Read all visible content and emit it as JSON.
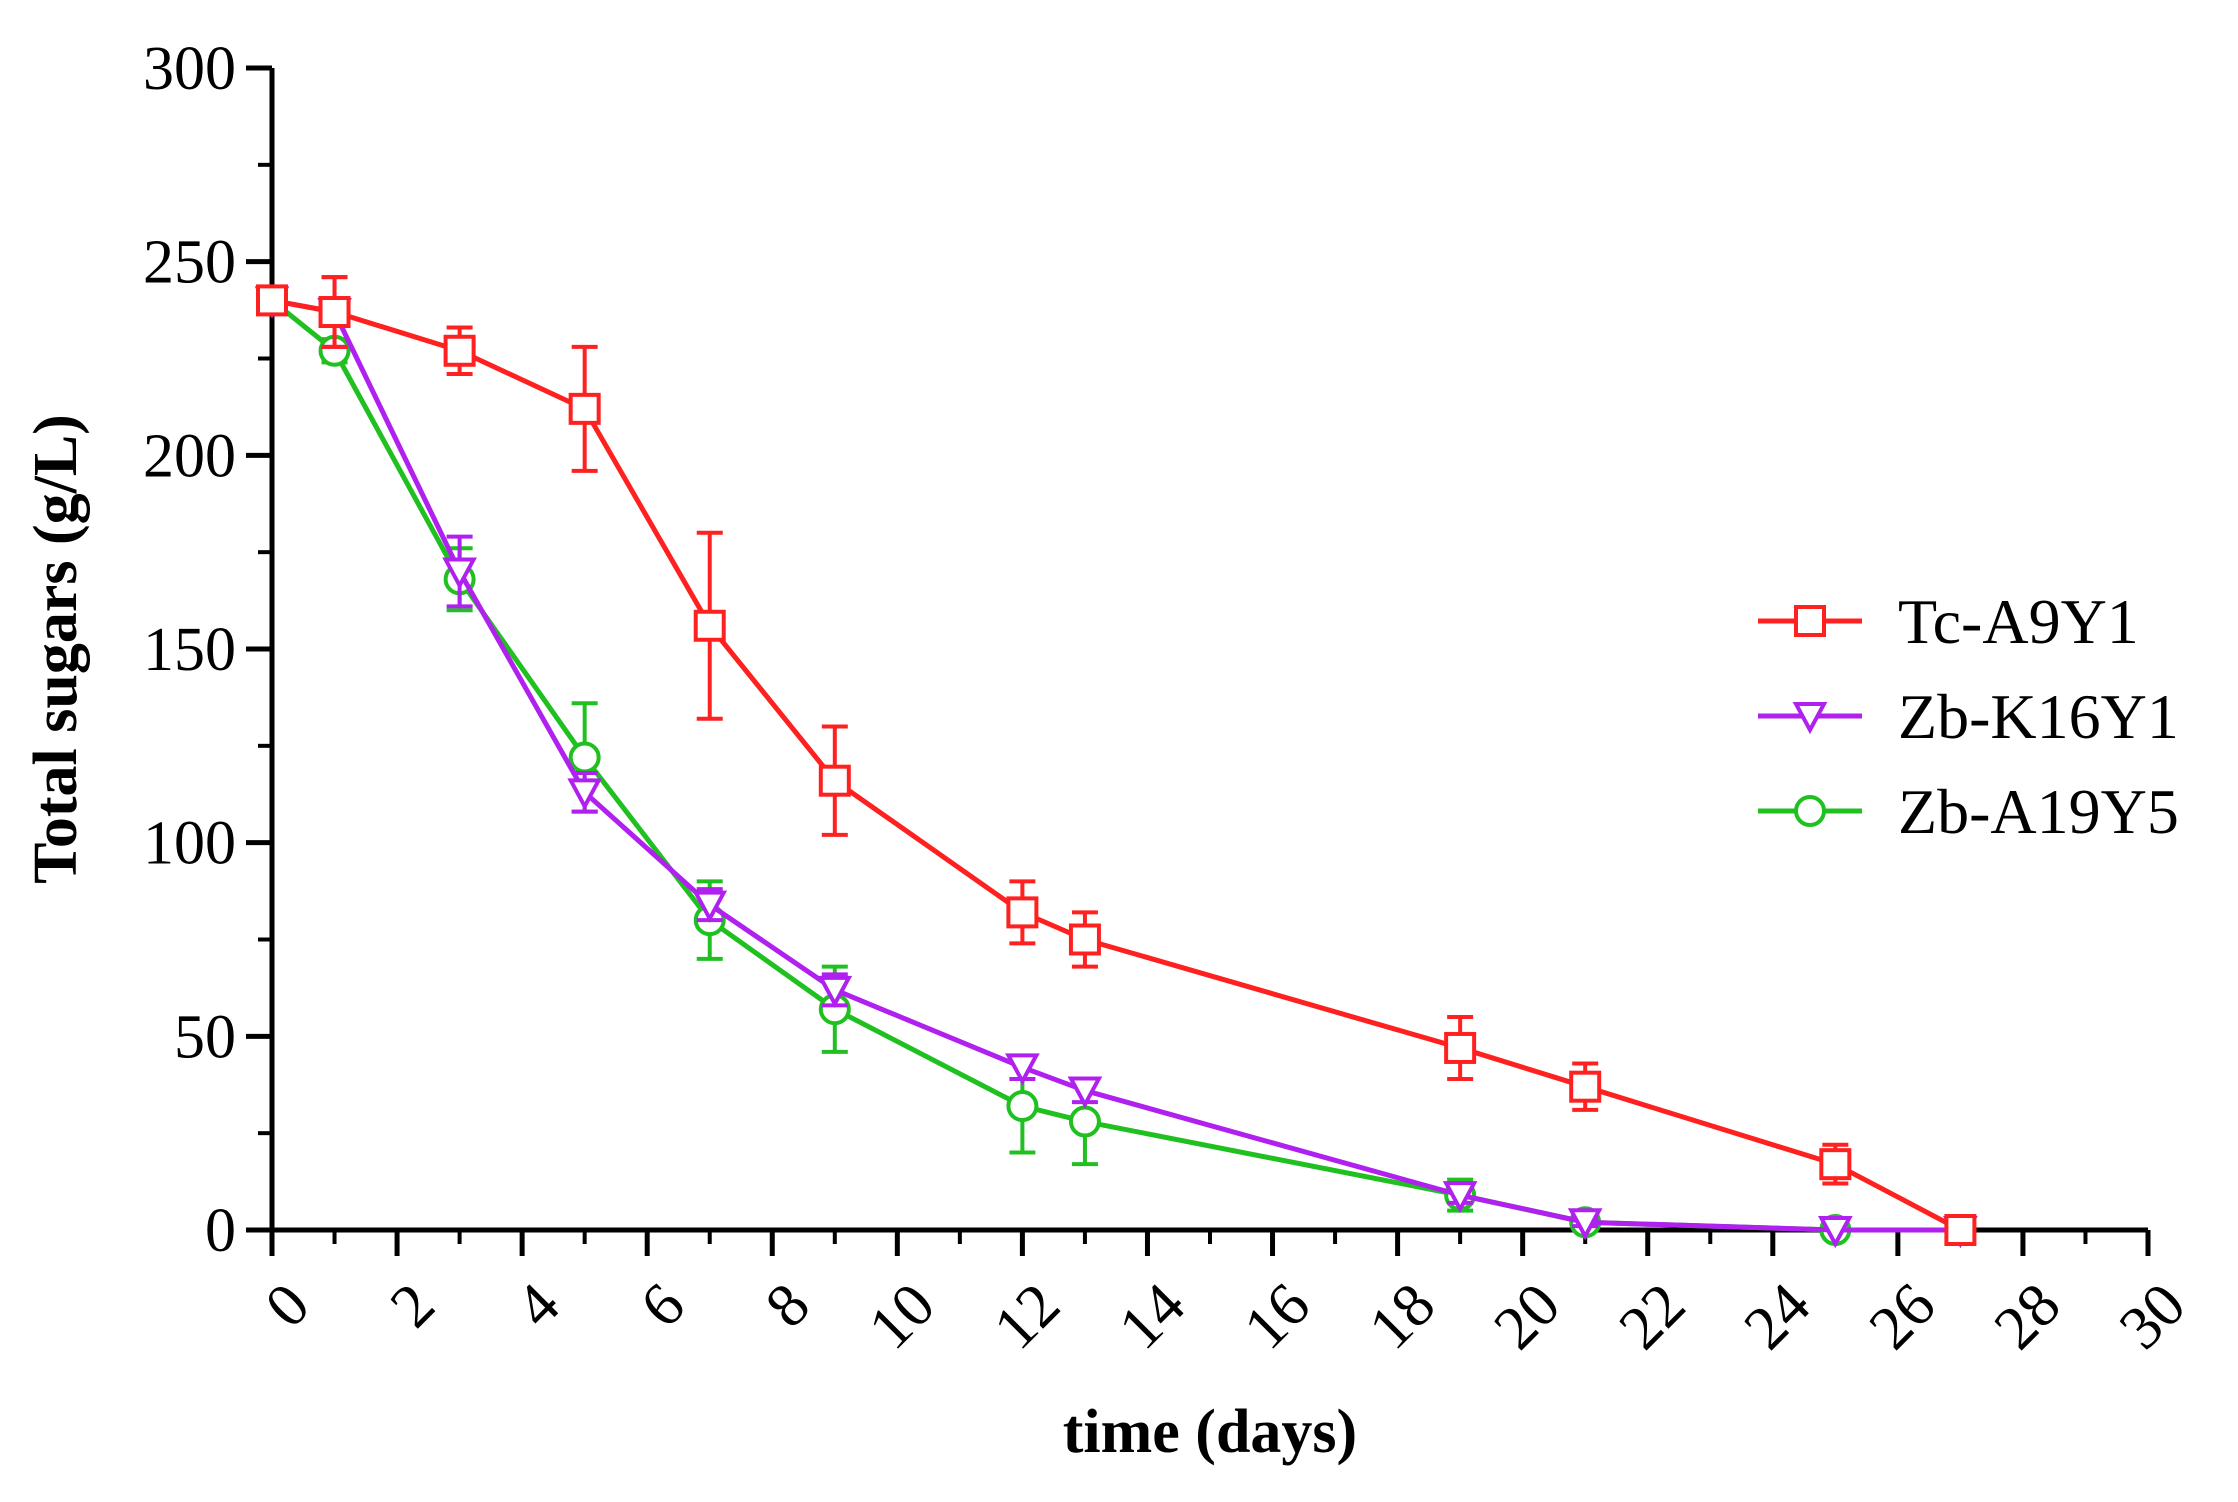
{
  "chart_data": {
    "type": "line",
    "title": "",
    "xlabel": "time (days)",
    "ylabel": "Total sugars (g/L)",
    "xlim": [
      0,
      30
    ],
    "ylim": [
      0,
      300
    ],
    "xticks": [
      "0",
      "2",
      "4",
      "6",
      "8",
      "10",
      "12",
      "14",
      "16",
      "18",
      "20",
      "22",
      "24",
      "26",
      "28",
      "30"
    ],
    "yticks": [
      "0",
      "50",
      "100",
      "150",
      "200",
      "250",
      "300"
    ],
    "legend_position": "right",
    "grid": false,
    "series": [
      {
        "name": "Tc-A9Y1",
        "color": "#ff2020",
        "marker": "square",
        "x": [
          0,
          1,
          3,
          5,
          7,
          9,
          12,
          13,
          19,
          21,
          25,
          27
        ],
        "y": [
          240,
          237,
          227,
          212,
          156,
          116,
          82,
          75,
          47,
          37,
          17,
          0
        ],
        "err": [
          0,
          9,
          6,
          16,
          24,
          14,
          8,
          7,
          8,
          6,
          5,
          2
        ]
      },
      {
        "name": "Zb-K16Y1",
        "color": "#b020ee",
        "marker": "triangle-down",
        "x": [
          0,
          1,
          3,
          5,
          7,
          9,
          12,
          13,
          19,
          21,
          25,
          27
        ],
        "y": [
          240,
          237,
          170,
          113,
          84,
          62,
          42,
          36,
          9,
          2,
          0,
          0
        ],
        "err": [
          0,
          9,
          9,
          5,
          4,
          4,
          3,
          3,
          2,
          1,
          0,
          0
        ]
      },
      {
        "name": "Zb-A19Y5",
        "color": "#20c020",
        "marker": "circle",
        "x": [
          0,
          1,
          3,
          5,
          7,
          9,
          12,
          13,
          19,
          21,
          25,
          27
        ],
        "y": [
          240,
          227,
          168,
          122,
          80,
          57,
          32,
          28,
          9,
          2,
          0,
          0
        ],
        "err": [
          0,
          3,
          8,
          14,
          10,
          11,
          12,
          11,
          4,
          2,
          0,
          0
        ]
      }
    ]
  }
}
